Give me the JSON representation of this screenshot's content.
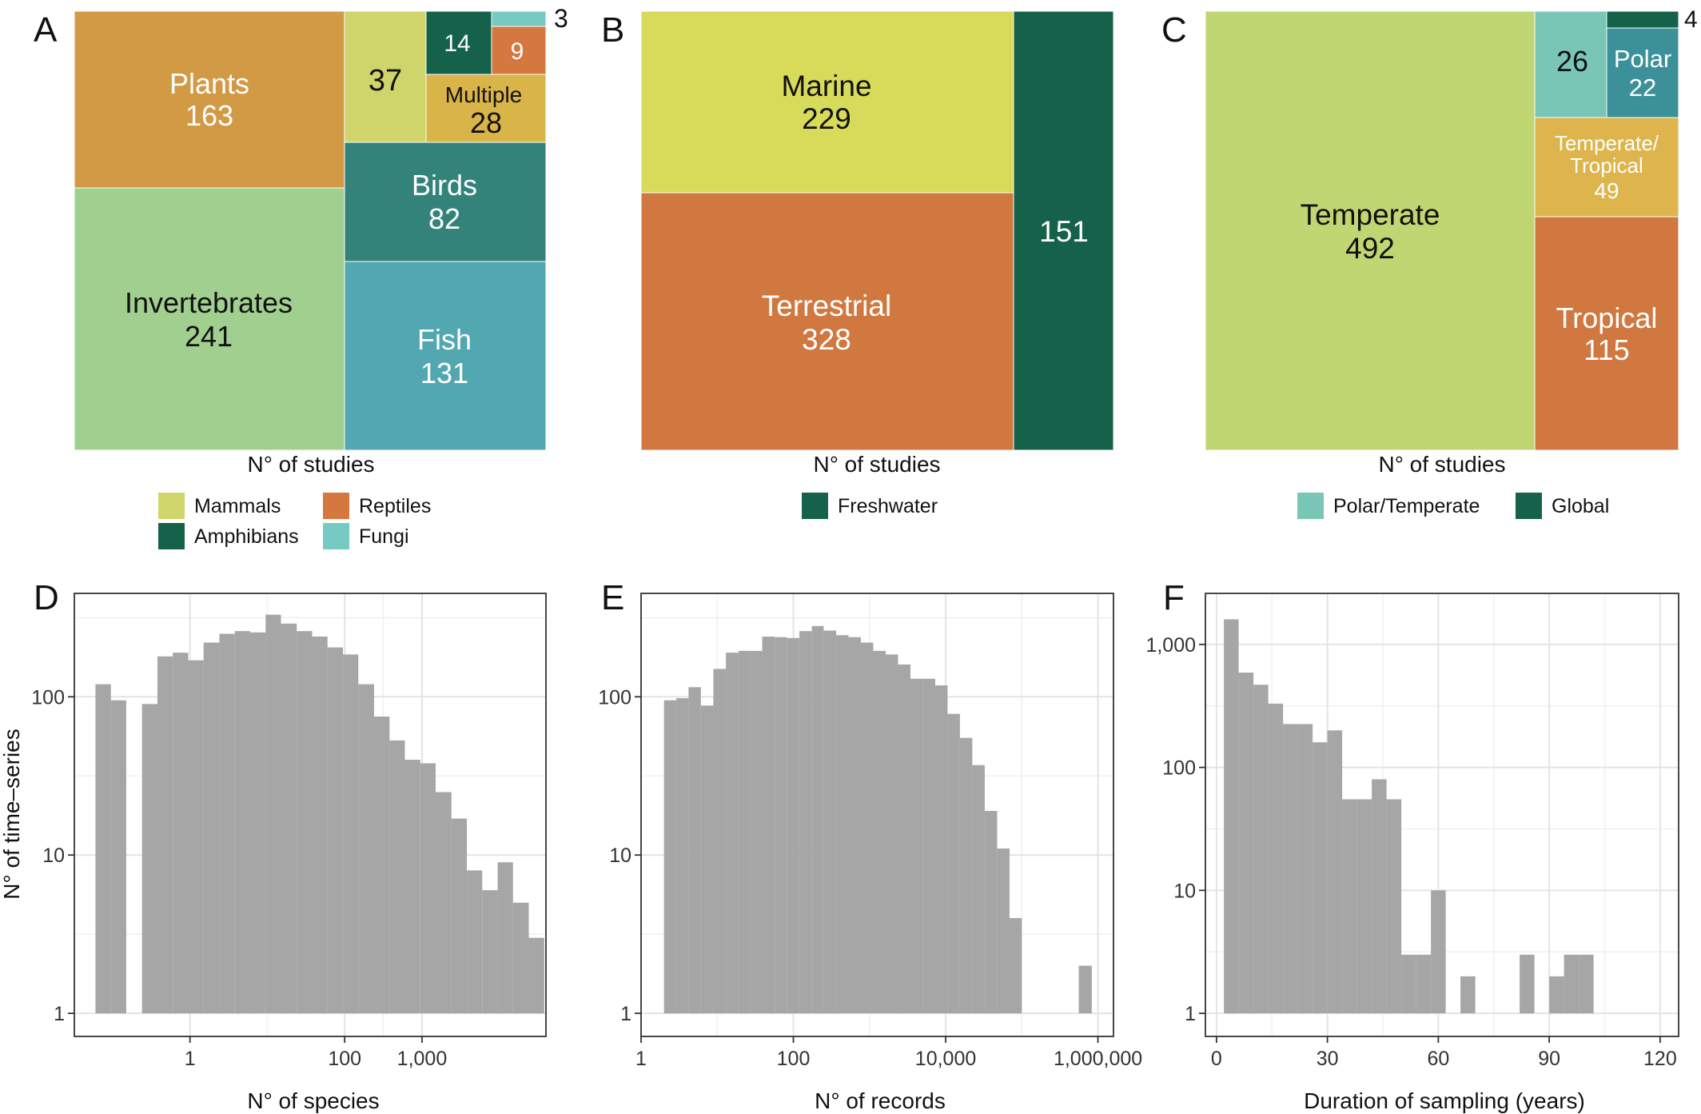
{
  "chart_data": [
    {
      "panel": "A",
      "type": "treemap",
      "xlabel": "N° of studies",
      "items": [
        {
          "name": "Plants",
          "value": 163,
          "label": "Plants",
          "color": "#D39A46",
          "text": "light"
        },
        {
          "name": "Invertebrates",
          "value": 241,
          "label": "Invertebrates",
          "color": "#A1CF8F",
          "text": "dark"
        },
        {
          "name": "Mammals",
          "value": 37,
          "label": "",
          "color": "#CFD56A",
          "text": "dark"
        },
        {
          "name": "Amphibians",
          "value": 14,
          "label": "",
          "color": "#16614A",
          "text": "light"
        },
        {
          "name": "Fungi",
          "value": 3,
          "label": "",
          "color": "#77C9C3",
          "text": "outside"
        },
        {
          "name": "Reptiles",
          "value": 9,
          "label": "",
          "color": "#D4783F",
          "text": "light"
        },
        {
          "name": "Multiple",
          "value": 28,
          "label": "Multiple",
          "color": "#D9B449",
          "text": "dark"
        },
        {
          "name": "Birds",
          "value": 82,
          "label": "Birds",
          "color": "#34837A",
          "text": "light"
        },
        {
          "name": "Fish",
          "value": 131,
          "label": "Fish",
          "color": "#52A7B0",
          "text": "light"
        }
      ],
      "legend": [
        {
          "label": "Mammals",
          "color": "#CFD56A"
        },
        {
          "label": "Reptiles",
          "color": "#D4783F"
        },
        {
          "label": "Amphibians",
          "color": "#16614A"
        },
        {
          "label": "Fungi",
          "color": "#77C9C3"
        }
      ]
    },
    {
      "panel": "B",
      "type": "treemap",
      "xlabel": "N° of studies",
      "items": [
        {
          "name": "Marine",
          "value": 229,
          "label": "Marine",
          "color": "#D8DA5A",
          "text": "dark"
        },
        {
          "name": "Terrestrial",
          "value": 328,
          "label": "Terrestrial",
          "color": "#D0783F",
          "text": "light"
        },
        {
          "name": "Freshwater",
          "value": 151,
          "label": "",
          "color": "#16614A",
          "text": "light"
        }
      ],
      "legend": [
        {
          "label": "Freshwater",
          "color": "#16614A"
        }
      ]
    },
    {
      "panel": "C",
      "type": "treemap",
      "xlabel": "N° of studies",
      "items": [
        {
          "name": "Temperate",
          "value": 492,
          "label": "Temperate",
          "color": "#BFD672",
          "text": "dark"
        },
        {
          "name": "Polar/Temperate",
          "value": 26,
          "label": "",
          "color": "#7AC6B6",
          "text": "dark"
        },
        {
          "name": "Polar",
          "value": 22,
          "label": "Polar",
          "color": "#3C9199",
          "text": "light"
        },
        {
          "name": "Global",
          "value": 4,
          "label": "",
          "color": "#16614A",
          "text": "outside"
        },
        {
          "name": "Temperate/Tropical",
          "value": 49,
          "label": "Temperate/\nTropical",
          "color": "#DDB54C",
          "text": "light"
        },
        {
          "name": "Tropical",
          "value": 115,
          "label": "Tropical",
          "color": "#D0783F",
          "text": "light"
        }
      ],
      "legend": [
        {
          "label": "Polar/Temperate",
          "color": "#7AC6B6"
        },
        {
          "label": "Global",
          "color": "#16614A"
        }
      ]
    },
    {
      "panel": "D",
      "type": "bar",
      "subtype": "histogram",
      "xlabel": "N° of species",
      "ylabel": "N° of time–series",
      "xscale": "log10",
      "yscale": "log10",
      "xlim": [
        0.032,
        40000
      ],
      "ylim": [
        1,
        450
      ],
      "xticks": [
        1,
        100,
        1000
      ],
      "xtick_labels": [
        "1",
        "100",
        "1,000"
      ],
      "yticks": [
        1,
        10,
        100
      ],
      "ytick_labels": [
        "1",
        "10",
        "100"
      ],
      "bins": [
        {
          "x0": 0.06,
          "x1": 0.095,
          "y": 120
        },
        {
          "x0": 0.095,
          "x1": 0.15,
          "y": 95
        },
        {
          "x0": 0.24,
          "x1": 0.38,
          "y": 90
        },
        {
          "x0": 0.38,
          "x1": 0.6,
          "y": 180
        },
        {
          "x0": 0.6,
          "x1": 0.95,
          "y": 190
        },
        {
          "x0": 0.95,
          "x1": 1.5,
          "y": 170
        },
        {
          "x0": 1.5,
          "x1": 2.4,
          "y": 220
        },
        {
          "x0": 2.4,
          "x1": 3.8,
          "y": 250
        },
        {
          "x0": 3.8,
          "x1": 6.0,
          "y": 260
        },
        {
          "x0": 6.0,
          "x1": 9.5,
          "y": 255
        },
        {
          "x0": 9.5,
          "x1": 15,
          "y": 330
        },
        {
          "x0": 15,
          "x1": 24,
          "y": 290
        },
        {
          "x0": 24,
          "x1": 38,
          "y": 260
        },
        {
          "x0": 38,
          "x1": 60,
          "y": 240
        },
        {
          "x0": 60,
          "x1": 95,
          "y": 205
        },
        {
          "x0": 95,
          "x1": 150,
          "y": 185
        },
        {
          "x0": 150,
          "x1": 240,
          "y": 120
        },
        {
          "x0": 240,
          "x1": 380,
          "y": 75
        },
        {
          "x0": 380,
          "x1": 600,
          "y": 53
        },
        {
          "x0": 600,
          "x1": 950,
          "y": 40
        },
        {
          "x0": 950,
          "x1": 1500,
          "y": 38
        },
        {
          "x0": 1500,
          "x1": 2400,
          "y": 25
        },
        {
          "x0": 2400,
          "x1": 3800,
          "y": 17
        },
        {
          "x0": 3800,
          "x1": 6000,
          "y": 8
        },
        {
          "x0": 6000,
          "x1": 9500,
          "y": 6
        },
        {
          "x0": 9500,
          "x1": 15000,
          "y": 9
        },
        {
          "x0": 15000,
          "x1": 24000,
          "y": 5
        },
        {
          "x0": 24000,
          "x1": 38000,
          "y": 3
        }
      ]
    },
    {
      "panel": "E",
      "type": "bar",
      "subtype": "histogram",
      "xlabel": "N° of records",
      "xscale": "log10",
      "yscale": "log10",
      "xlim": [
        1,
        1600000
      ],
      "ylim": [
        1,
        450
      ],
      "xticks": [
        1,
        100,
        10000,
        1000000
      ],
      "xtick_labels": [
        "1",
        "100",
        "10,000",
        "1,000,000"
      ],
      "yticks": [
        1,
        10,
        100
      ],
      "ytick_labels": [
        "1",
        "10",
        "100"
      ],
      "bins": [
        {
          "x0": 2.0,
          "x1": 2.9,
          "y": 95
        },
        {
          "x0": 2.9,
          "x1": 4.2,
          "y": 98
        },
        {
          "x0": 4.2,
          "x1": 6.1,
          "y": 115
        },
        {
          "x0": 6.1,
          "x1": 8.9,
          "y": 88
        },
        {
          "x0": 8.9,
          "x1": 13,
          "y": 150
        },
        {
          "x0": 13,
          "x1": 19,
          "y": 190
        },
        {
          "x0": 19,
          "x1": 27,
          "y": 195
        },
        {
          "x0": 27,
          "x1": 39,
          "y": 195
        },
        {
          "x0": 39,
          "x1": 57,
          "y": 240
        },
        {
          "x0": 57,
          "x1": 82,
          "y": 238
        },
        {
          "x0": 82,
          "x1": 120,
          "y": 235
        },
        {
          "x0": 120,
          "x1": 175,
          "y": 260
        },
        {
          "x0": 175,
          "x1": 250,
          "y": 280
        },
        {
          "x0": 250,
          "x1": 365,
          "y": 262
        },
        {
          "x0": 365,
          "x1": 530,
          "y": 245
        },
        {
          "x0": 530,
          "x1": 770,
          "y": 238
        },
        {
          "x0": 770,
          "x1": 1120,
          "y": 220
        },
        {
          "x0": 1120,
          "x1": 1630,
          "y": 195
        },
        {
          "x0": 1630,
          "x1": 2370,
          "y": 185
        },
        {
          "x0": 2370,
          "x1": 3450,
          "y": 160
        },
        {
          "x0": 3450,
          "x1": 5000,
          "y": 130
        },
        {
          "x0": 5000,
          "x1": 7300,
          "y": 130
        },
        {
          "x0": 7300,
          "x1": 10600,
          "y": 118
        },
        {
          "x0": 10600,
          "x1": 15400,
          "y": 78
        },
        {
          "x0": 15400,
          "x1": 22400,
          "y": 55
        },
        {
          "x0": 22400,
          "x1": 32600,
          "y": 37
        },
        {
          "x0": 32600,
          "x1": 47400,
          "y": 19
        },
        {
          "x0": 47400,
          "x1": 69000,
          "y": 11
        },
        {
          "x0": 69000,
          "x1": 100000,
          "y": 4
        },
        {
          "x0": 560000,
          "x1": 830000,
          "y": 2
        }
      ]
    },
    {
      "panel": "F",
      "type": "bar",
      "subtype": "histogram",
      "xlabel": "Duration of sampling (years)",
      "xscale": "linear",
      "yscale": "log10",
      "xlim": [
        -3,
        125
      ],
      "ylim": [
        1,
        2600
      ],
      "xticks": [
        0,
        30,
        60,
        90,
        120
      ],
      "xtick_labels": [
        "0",
        "30",
        "60",
        "90",
        "120"
      ],
      "yticks": [
        1,
        10,
        100,
        1000
      ],
      "ytick_labels": [
        "1",
        "10",
        "100",
        "1,000"
      ],
      "bins": [
        {
          "x0": 2,
          "x1": 6,
          "y": 1600
        },
        {
          "x0": 6,
          "x1": 10,
          "y": 590
        },
        {
          "x0": 10,
          "x1": 14,
          "y": 470
        },
        {
          "x0": 14,
          "x1": 18,
          "y": 330
        },
        {
          "x0": 18,
          "x1": 22,
          "y": 225
        },
        {
          "x0": 22,
          "x1": 26,
          "y": 225
        },
        {
          "x0": 26,
          "x1": 30,
          "y": 160
        },
        {
          "x0": 30,
          "x1": 34,
          "y": 200
        },
        {
          "x0": 34,
          "x1": 38,
          "y": 55
        },
        {
          "x0": 38,
          "x1": 42,
          "y": 55
        },
        {
          "x0": 42,
          "x1": 46,
          "y": 80
        },
        {
          "x0": 46,
          "x1": 50,
          "y": 55
        },
        {
          "x0": 50,
          "x1": 54,
          "y": 3
        },
        {
          "x0": 54,
          "x1": 58,
          "y": 3
        },
        {
          "x0": 58,
          "x1": 62,
          "y": 10
        },
        {
          "x0": 66,
          "x1": 70,
          "y": 2
        },
        {
          "x0": 82,
          "x1": 86,
          "y": 3
        },
        {
          "x0": 90,
          "x1": 94,
          "y": 2
        },
        {
          "x0": 94,
          "x1": 98,
          "y": 3
        },
        {
          "x0": 98,
          "x1": 102,
          "y": 3
        }
      ]
    }
  ]
}
